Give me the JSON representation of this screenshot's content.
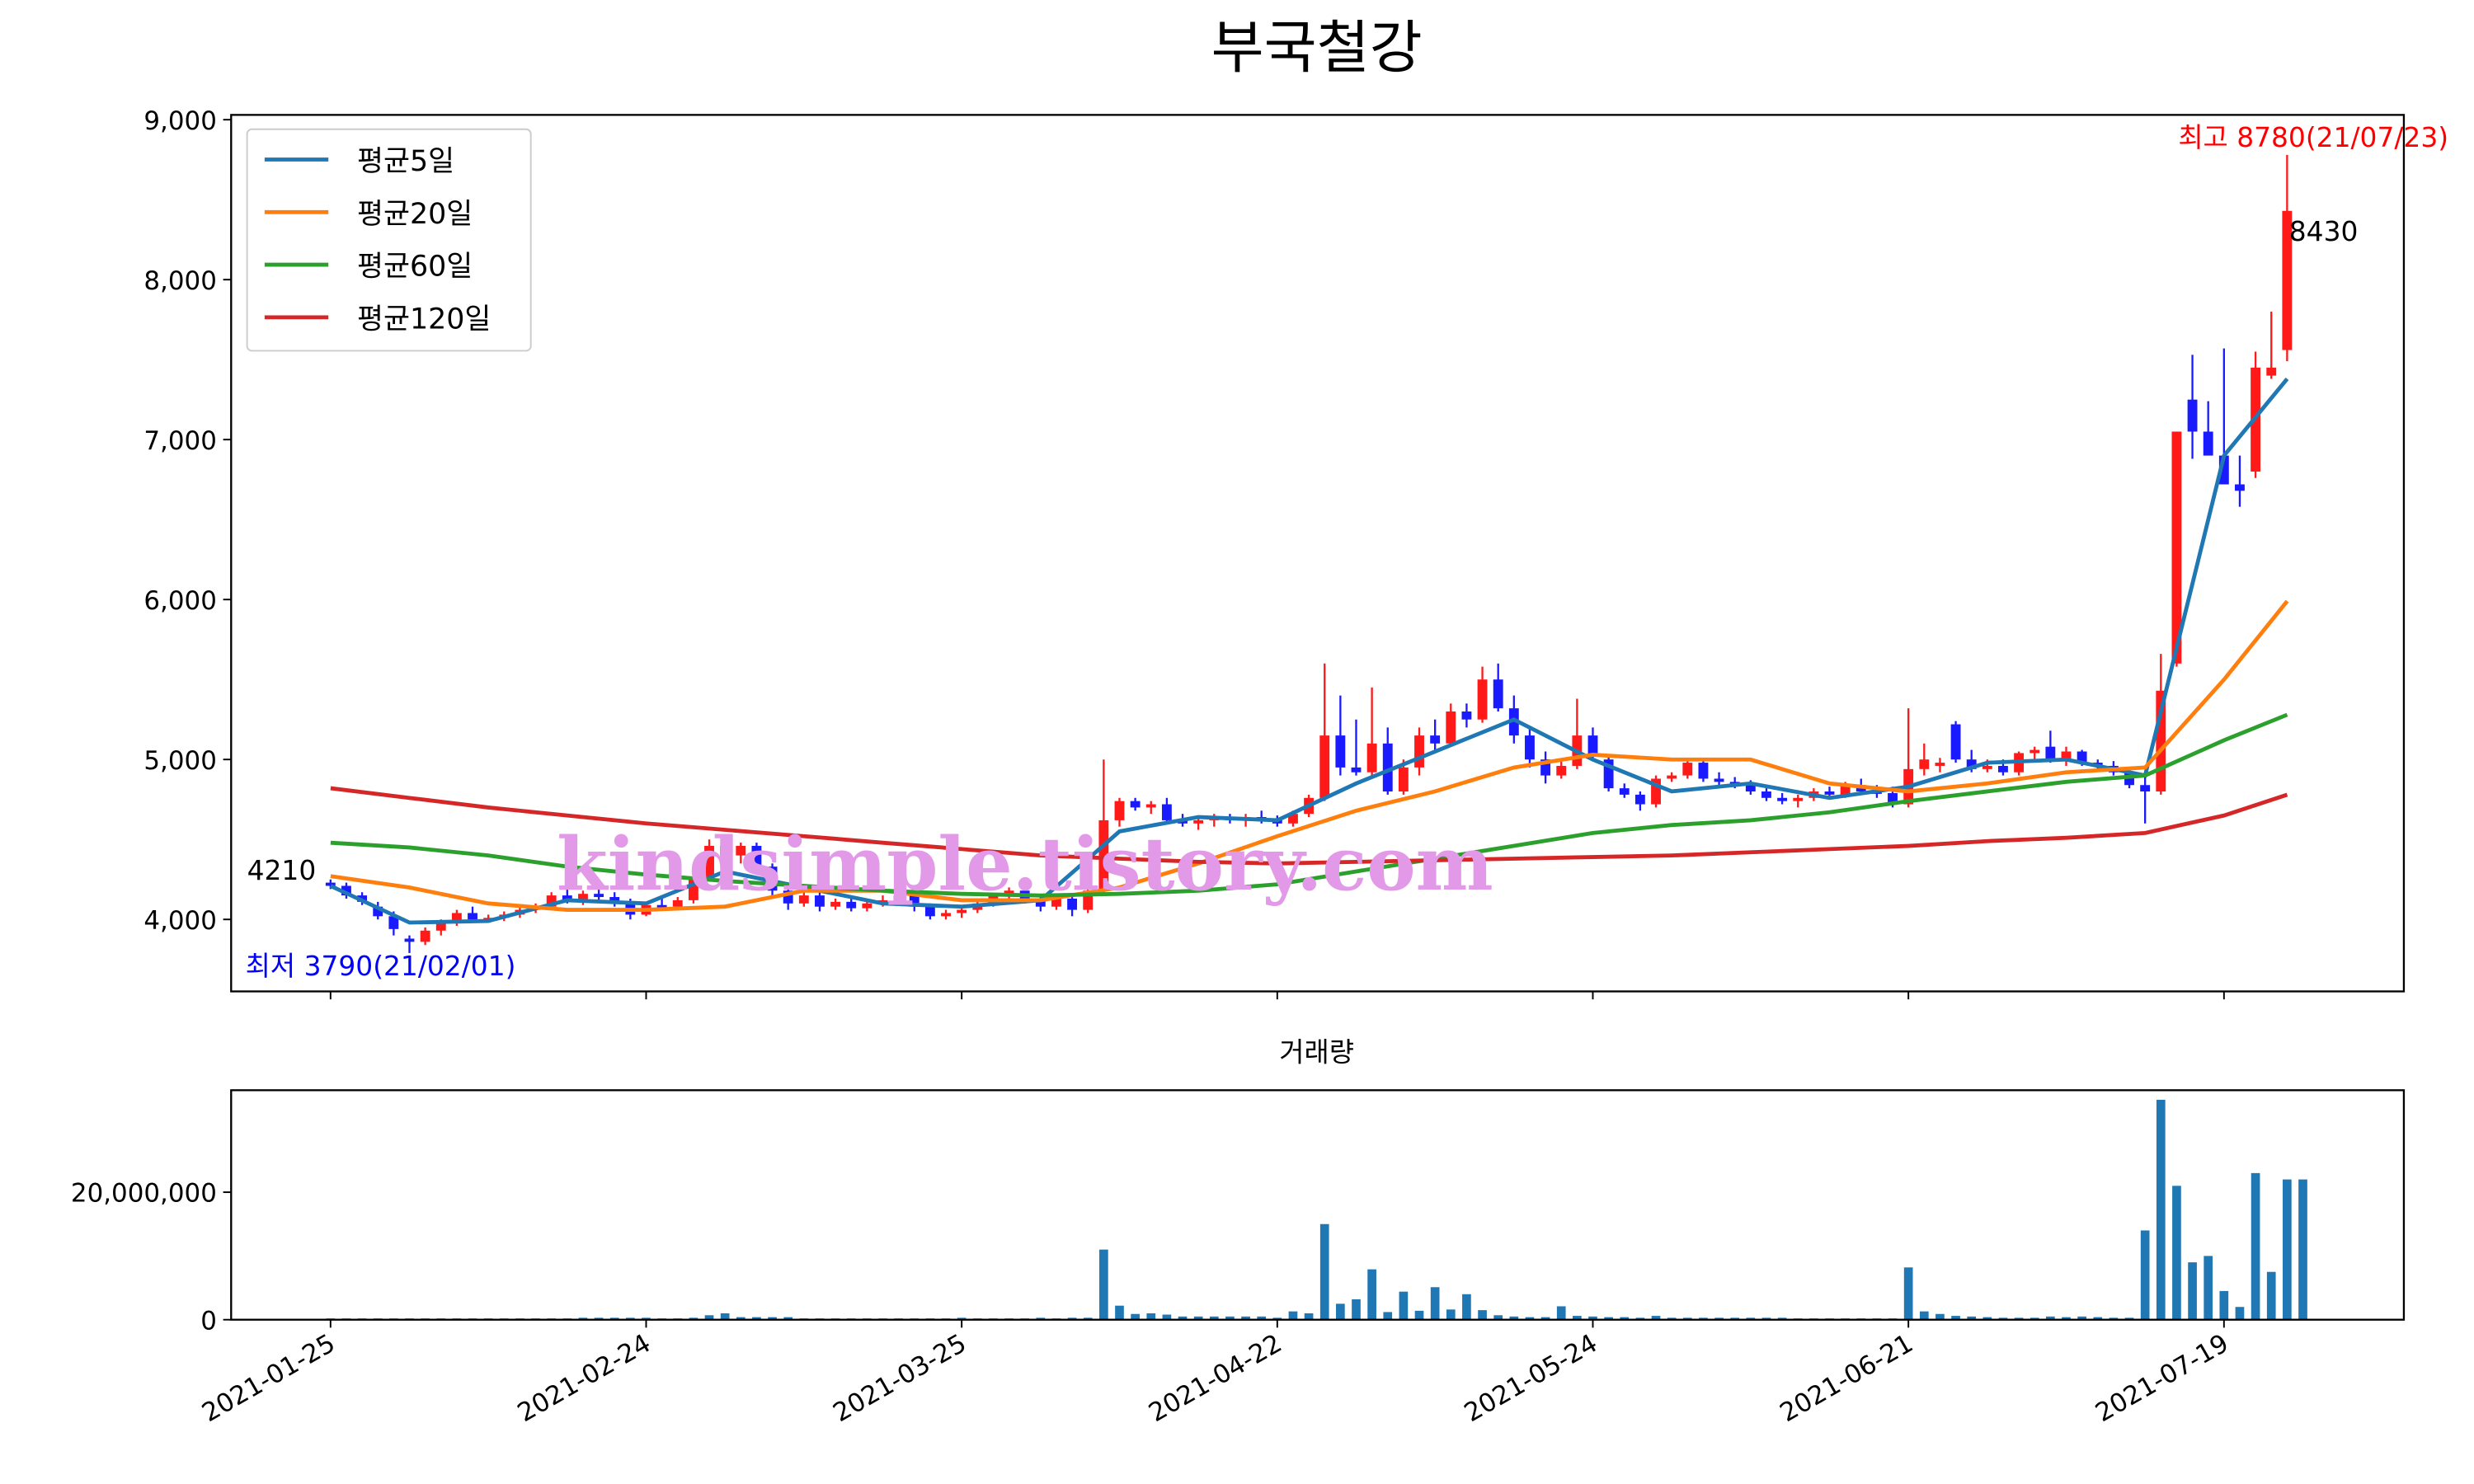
{
  "chart_data": [
    {
      "type": "candlestick",
      "title": "부국철강",
      "up_color": "#ff1a1a",
      "down_color": "#1a1aff",
      "xlim": [
        -6.3,
        131.4
      ],
      "xticks": [
        {
          "value": 0,
          "label": "2021-01-25"
        },
        {
          "value": 20,
          "label": "2021-02-24"
        },
        {
          "value": 40,
          "label": "2021-03-25"
        },
        {
          "value": 60,
          "label": "2021-04-22"
        },
        {
          "value": 80,
          "label": "2021-05-24"
        },
        {
          "value": 100,
          "label": "2021-06-21"
        },
        {
          "value": 120,
          "label": "2021-07-19"
        }
      ],
      "ylim": [
        3550,
        9030
      ],
      "yticks": [
        {
          "value": 4000,
          "label": "4,000"
        },
        {
          "value": 5000,
          "label": "5,000"
        },
        {
          "value": 6000,
          "label": "6,000"
        },
        {
          "value": 7000,
          "label": "7,000"
        },
        {
          "value": 8000,
          "label": "8,000"
        },
        {
          "value": 9000,
          "label": "9,000"
        }
      ],
      "legend": "upper left",
      "candles": [
        [
          4230,
          4250,
          4190,
          4210
        ],
        [
          4210,
          4230,
          4130,
          4150
        ],
        [
          4150,
          4170,
          4090,
          4110
        ],
        [
          4080,
          4110,
          4000,
          4020
        ],
        [
          4020,
          4050,
          3900,
          3940
        ],
        [
          3880,
          3900,
          3790,
          3860
        ],
        [
          3860,
          3950,
          3840,
          3930
        ],
        [
          3930,
          4000,
          3900,
          3980
        ],
        [
          3980,
          4060,
          3960,
          4040
        ],
        [
          4040,
          4080,
          3990,
          4000
        ],
        [
          4000,
          4030,
          3980,
          4010
        ],
        [
          4010,
          4050,
          3990,
          4030
        ],
        [
          4030,
          4080,
          4010,
          4060
        ],
        [
          4060,
          4100,
          4040,
          4080
        ],
        [
          4080,
          4170,
          4060,
          4150
        ],
        [
          4150,
          4200,
          4100,
          4120
        ],
        [
          4120,
          4180,
          4090,
          4160
        ],
        [
          4160,
          4200,
          4120,
          4140
        ],
        [
          4140,
          4170,
          4080,
          4100
        ],
        [
          4100,
          4130,
          4000,
          4030
        ],
        [
          4030,
          4110,
          4020,
          4090
        ],
        [
          4090,
          4150,
          4060,
          4080
        ],
        [
          4080,
          4140,
          4060,
          4120
        ],
        [
          4120,
          4280,
          4100,
          4260
        ],
        [
          4260,
          4500,
          4240,
          4460
        ],
        [
          4460,
          4500,
          4380,
          4400
        ],
        [
          4400,
          4480,
          4350,
          4460
        ],
        [
          4460,
          4480,
          4300,
          4330
        ],
        [
          4330,
          4350,
          4150,
          4180
        ],
        [
          4180,
          4200,
          4060,
          4100
        ],
        [
          4100,
          4180,
          4080,
          4150
        ],
        [
          4150,
          4170,
          4050,
          4080
        ],
        [
          4080,
          4130,
          4060,
          4110
        ],
        [
          4110,
          4140,
          4050,
          4070
        ],
        [
          4070,
          4120,
          4050,
          4100
        ],
        [
          4100,
          4150,
          4080,
          4120
        ],
        [
          4120,
          4170,
          4100,
          4150
        ],
        [
          4150,
          4180,
          4050,
          4080
        ],
        [
          4080,
          4100,
          4000,
          4020
        ],
        [
          4020,
          4060,
          4000,
          4040
        ],
        [
          4040,
          4080,
          4010,
          4060
        ],
        [
          4060,
          4130,
          4040,
          4100
        ],
        [
          4100,
          4160,
          4080,
          4150
        ],
        [
          4150,
          4200,
          4120,
          4180
        ],
        [
          4180,
          4210,
          4100,
          4120
        ],
        [
          4120,
          4150,
          4050,
          4080
        ],
        [
          4080,
          4150,
          4060,
          4130
        ],
        [
          4130,
          4160,
          4020,
          4060
        ],
        [
          4060,
          4200,
          4040,
          4180
        ],
        [
          4180,
          5000,
          4160,
          4620
        ],
        [
          4620,
          4760,
          4580,
          4740
        ],
        [
          4740,
          4760,
          4680,
          4700
        ],
        [
          4700,
          4740,
          4660,
          4720
        ],
        [
          4720,
          4760,
          4600,
          4620
        ],
        [
          4620,
          4660,
          4580,
          4600
        ],
        [
          4600,
          4650,
          4560,
          4620
        ],
        [
          4620,
          4660,
          4580,
          4640
        ],
        [
          4640,
          4660,
          4600,
          4620
        ],
        [
          4620,
          4660,
          4580,
          4640
        ],
        [
          4640,
          4680,
          4600,
          4620
        ],
        [
          4620,
          4650,
          4580,
          4600
        ],
        [
          4600,
          4680,
          4580,
          4660
        ],
        [
          4660,
          4780,
          4640,
          4760
        ],
        [
          4760,
          5600,
          4740,
          5150
        ],
        [
          5150,
          5400,
          4900,
          4950
        ],
        [
          4950,
          5250,
          4900,
          4920
        ],
        [
          4920,
          5450,
          4900,
          5100
        ],
        [
          5100,
          5200,
          4780,
          4800
        ],
        [
          4800,
          5000,
          4780,
          4950
        ],
        [
          4950,
          5200,
          4900,
          5150
        ],
        [
          5150,
          5250,
          5050,
          5100
        ],
        [
          5100,
          5350,
          5080,
          5300
        ],
        [
          5300,
          5350,
          5200,
          5250
        ],
        [
          5250,
          5580,
          5230,
          5500
        ],
        [
          5500,
          5600,
          5300,
          5320
        ],
        [
          5320,
          5400,
          5100,
          5150
        ],
        [
          5150,
          5200,
          4950,
          5000
        ],
        [
          5000,
          5050,
          4850,
          4900
        ],
        [
          4900,
          5000,
          4880,
          4960
        ],
        [
          4960,
          5380,
          4940,
          5150
        ],
        [
          5150,
          5200,
          5000,
          5020
        ],
        [
          5000,
          5020,
          4800,
          4820
        ],
        [
          4820,
          4850,
          4760,
          4780
        ],
        [
          4780,
          4800,
          4680,
          4720
        ],
        [
          4720,
          4900,
          4700,
          4880
        ],
        [
          4880,
          4920,
          4860,
          4900
        ],
        [
          4900,
          5000,
          4880,
          4980
        ],
        [
          4980,
          5000,
          4860,
          4880
        ],
        [
          4880,
          4920,
          4840,
          4860
        ],
        [
          4860,
          4890,
          4820,
          4840
        ],
        [
          4840,
          4870,
          4780,
          4800
        ],
        [
          4800,
          4820,
          4740,
          4760
        ],
        [
          4760,
          4790,
          4720,
          4740
        ],
        [
          4740,
          4780,
          4700,
          4760
        ],
        [
          4760,
          4820,
          4740,
          4800
        ],
        [
          4800,
          4830,
          4760,
          4780
        ],
        [
          4780,
          4860,
          4760,
          4840
        ],
        [
          4840,
          4880,
          4780,
          4800
        ],
        [
          4800,
          4840,
          4760,
          4790
        ],
        [
          4790,
          4830,
          4700,
          4720
        ],
        [
          4720,
          5320,
          4700,
          4940
        ],
        [
          4940,
          5100,
          4900,
          5000
        ],
        [
          4960,
          5010,
          4920,
          4980
        ],
        [
          5220,
          5240,
          4980,
          5000
        ],
        [
          5000,
          5060,
          4920,
          4940
        ],
        [
          4940,
          5000,
          4920,
          4960
        ],
        [
          4960,
          5000,
          4900,
          4920
        ],
        [
          4920,
          5050,
          4900,
          5040
        ],
        [
          5040,
          5080,
          5000,
          5060
        ],
        [
          5080,
          5180,
          4980,
          5000
        ],
        [
          5000,
          5080,
          4960,
          5050
        ],
        [
          5050,
          5060,
          4960,
          4980
        ],
        [
          4980,
          5000,
          4940,
          4960
        ],
        [
          4960,
          4990,
          4900,
          4920
        ],
        [
          4920,
          4940,
          4820,
          4840
        ],
        [
          4840,
          4900,
          4600,
          4800
        ],
        [
          4800,
          5660,
          4780,
          5430
        ],
        [
          5600,
          7050,
          5580,
          7050
        ],
        [
          7250,
          7530,
          6880,
          7050
        ],
        [
          7050,
          7240,
          6940,
          6900
        ],
        [
          6900,
          7570,
          6720,
          6720
        ],
        [
          6720,
          6900,
          6580,
          6680
        ],
        [
          6800,
          7550,
          6760,
          7450
        ],
        [
          7400,
          7800,
          7380,
          7450
        ],
        [
          7560,
          8780,
          7490,
          8430
        ]
      ],
      "ma_x": [
        0,
        5,
        10,
        15,
        20,
        25,
        30,
        35,
        40,
        45,
        50,
        55,
        60,
        65,
        70,
        75,
        80,
        85,
        90,
        95,
        100,
        105,
        110,
        115,
        120,
        124
      ],
      "series": [
        {
          "name": "평균5일",
          "color": "#1f77b4",
          "values": [
            4210,
            3980,
            3990,
            4120,
            4100,
            4300,
            4200,
            4100,
            4080,
            4120,
            4550,
            4640,
            4620,
            4850,
            5050,
            5250,
            5000,
            4800,
            4850,
            4760,
            4830,
            4980,
            5000,
            4900,
            6900,
            7380
          ]
        },
        {
          "name": "평균20일",
          "color": "#ff7f0e",
          "values": [
            4270,
            4200,
            4100,
            4060,
            4060,
            4080,
            4180,
            4180,
            4120,
            4120,
            4200,
            4350,
            4520,
            4680,
            4800,
            4950,
            5030,
            5000,
            5000,
            4850,
            4800,
            4850,
            4920,
            4950,
            5500,
            5990
          ]
        },
        {
          "name": "평균60일",
          "color": "#2ca02c",
          "values": [
            4480,
            4450,
            4400,
            4330,
            4280,
            4240,
            4210,
            4180,
            4160,
            4150,
            4160,
            4180,
            4220,
            4300,
            4380,
            4460,
            4540,
            4590,
            4620,
            4670,
            4740,
            4800,
            4860,
            4900,
            5120,
            5280
          ]
        },
        {
          "name": "평균120일",
          "color": "#d62728",
          "values": [
            4820,
            4760,
            4700,
            4650,
            4600,
            4560,
            4520,
            4480,
            4440,
            4400,
            4380,
            4360,
            4350,
            4360,
            4370,
            4380,
            4390,
            4400,
            4420,
            4440,
            4460,
            4490,
            4510,
            4540,
            4650,
            4780
          ]
        }
      ],
      "annotations": [
        "4210",
        "8430",
        "최고 8780(21/07/23)",
        "최저 3790(21/02/01)"
      ],
      "watermark": "kindsimple.tistory.com"
    },
    {
      "type": "bar",
      "title": "거래량",
      "color": "#1f77b4",
      "xlim": [
        -6.3,
        131.4
      ],
      "ylim": [
        0,
        36000000
      ],
      "yticks": [
        0,
        {
          "value": 20000000,
          "label": "20,000,000"
        }
      ],
      "values": [
        200000,
        200000,
        200000,
        200000,
        200000,
        200000,
        200000,
        200000,
        200000,
        200000,
        200000,
        200000,
        200000,
        200000,
        200000,
        200000,
        300000,
        300000,
        300000,
        300000,
        300000,
        200000,
        200000,
        300000,
        700000,
        1000000,
        400000,
        400000,
        400000,
        400000,
        200000,
        200000,
        200000,
        200000,
        200000,
        200000,
        200000,
        200000,
        200000,
        200000,
        300000,
        200000,
        200000,
        200000,
        200000,
        300000,
        200000,
        300000,
        300000,
        11000000,
        2200000,
        900000,
        1000000,
        800000,
        500000,
        500000,
        500000,
        500000,
        500000,
        500000,
        300000,
        1300000,
        1000000,
        15000000,
        2500000,
        3200000,
        7900000,
        1200000,
        4400000,
        1400000,
        5100000,
        1600000,
        4000000,
        1500000,
        700000,
        500000,
        400000,
        400000,
        2100000,
        600000,
        500000,
        400000,
        400000,
        300000,
        600000,
        300000,
        300000,
        300000,
        300000,
        300000,
        300000,
        300000,
        300000,
        200000,
        200000,
        200000,
        200000,
        200000,
        200000,
        200000,
        8200000,
        1300000,
        900000,
        600000,
        500000,
        400000,
        300000,
        300000,
        300000,
        500000,
        400000,
        500000,
        400000,
        300000,
        300000,
        14000000,
        34500000,
        21000000,
        9000000,
        10000000,
        4500000,
        2000000,
        23000000,
        7500000,
        22000000,
        22000000
      ]
    }
  ]
}
